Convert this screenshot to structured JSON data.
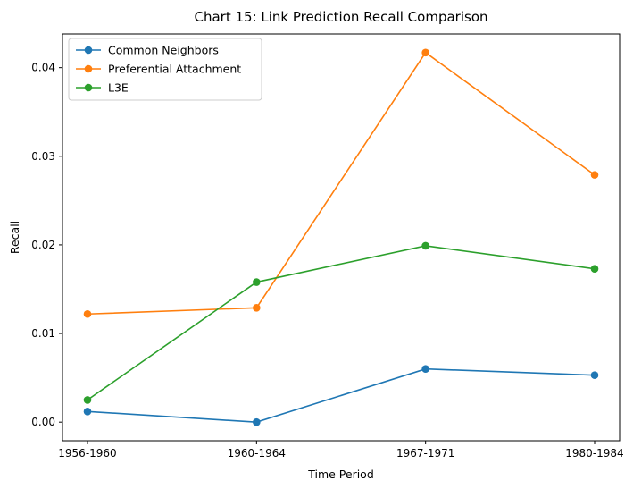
{
  "chart_data": {
    "type": "line",
    "title": "Chart 15: Link Prediction Recall Comparison",
    "xlabel": "Time Period",
    "ylabel": "Recall",
    "categories": [
      "1956-1960",
      "1960-1964",
      "1967-1971",
      "1980-1984"
    ],
    "ylim": [
      -0.0021,
      0.0438
    ],
    "yticks": [
      0.0,
      0.01,
      0.02,
      0.03,
      0.04
    ],
    "ytick_labels": [
      "0.00",
      "0.01",
      "0.02",
      "0.03",
      "0.04"
    ],
    "grid": false,
    "legend_position": "top-left",
    "series": [
      {
        "name": "Common Neighbors",
        "color": "#1f77b4",
        "values": [
          0.0012,
          0.0,
          0.006,
          0.0053
        ]
      },
      {
        "name": "Preferential Attachment",
        "color": "#ff7f0e",
        "values": [
          0.0122,
          0.0129,
          0.0417,
          0.0279
        ]
      },
      {
        "name": "L3E",
        "color": "#2ca02c",
        "values": [
          0.0025,
          0.0158,
          0.0199,
          0.0173
        ]
      }
    ]
  }
}
